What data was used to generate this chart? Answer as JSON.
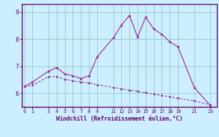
{
  "xlabel": "Windchill (Refroidissement éolien,°C)",
  "bg_color": "#cceeff",
  "line_color": "#993399",
  "grid_color": "#99cccc",
  "axis_color": "#660066",
  "tick_color": "#660066",
  "x_values": [
    0,
    1,
    3,
    4,
    5,
    6,
    7,
    8,
    9,
    11,
    12,
    13,
    14,
    15,
    16,
    17,
    18,
    19,
    21,
    23
  ],
  "y_main": [
    6.25,
    6.42,
    6.82,
    6.95,
    6.72,
    6.65,
    6.55,
    6.65,
    7.35,
    8.05,
    8.52,
    8.88,
    8.08,
    8.82,
    8.38,
    8.18,
    7.9,
    7.72,
    6.22,
    5.55
  ],
  "y_trend": [
    6.25,
    6.3,
    6.62,
    6.62,
    6.52,
    6.47,
    6.42,
    6.38,
    6.32,
    6.22,
    6.17,
    6.12,
    6.07,
    6.02,
    5.97,
    5.92,
    5.87,
    5.82,
    5.72,
    5.58
  ],
  "yticks": [
    6,
    7,
    8,
    9
  ],
  "xticks": [
    0,
    1,
    3,
    4,
    5,
    6,
    7,
    8,
    9,
    11,
    12,
    13,
    14,
    15,
    16,
    17,
    18,
    19,
    21,
    23
  ],
  "xtick_labels": [
    "0",
    "1",
    "3",
    "4",
    "5",
    "6",
    "7",
    "8",
    "9",
    "11",
    "12",
    "13",
    "14",
    "15",
    "16",
    "17",
    "18",
    "19",
    "21",
    "23"
  ],
  "ylim": [
    5.5,
    9.3
  ],
  "xlim": [
    -0.3,
    23.8
  ]
}
